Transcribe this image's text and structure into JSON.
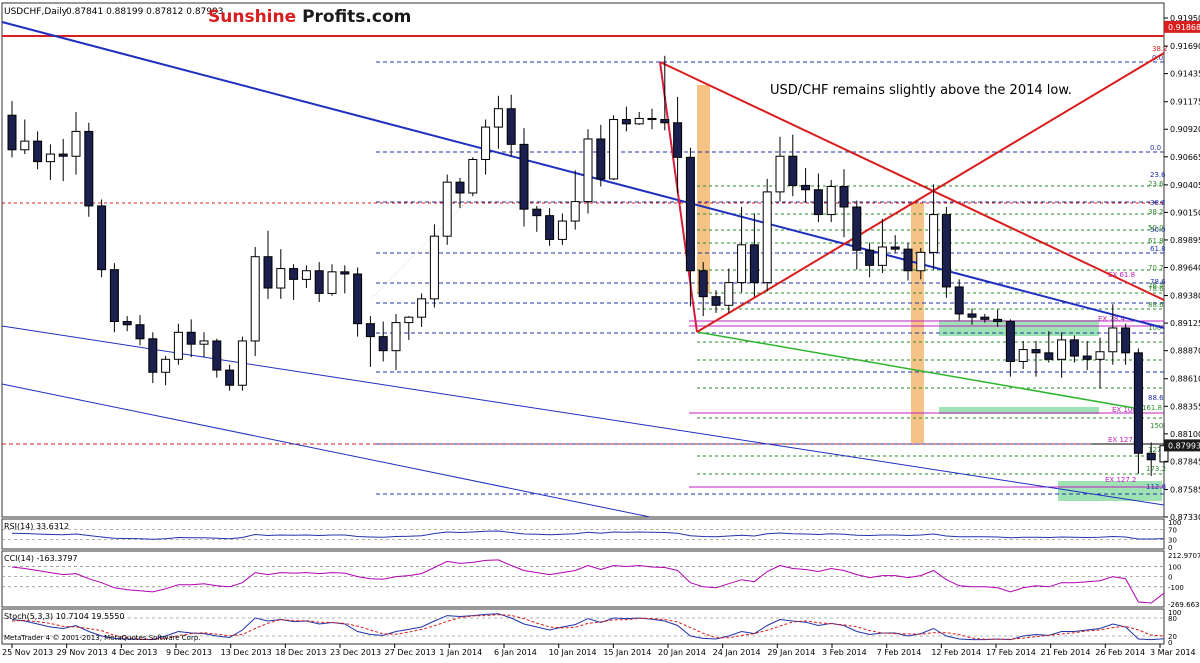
{
  "header": {
    "symbol_label": "USDCHF,Daily",
    "ohlc": "0.87841 0.88199 0.87812 0.87993"
  },
  "brand": {
    "part1": "Sunshine",
    "part2": "Profits.com",
    "color1": "#d81e1e",
    "color2": "#1a1a1a"
  },
  "annotation": "USD/CHF remains slightly above the 2014 low.",
  "footer": "MetaTrader 4 © 2001-2013, MetaQuotes Software Corp.",
  "colors": {
    "bear": "#1a1f4e",
    "bull": "#ffffff",
    "trend_blue": "#1f2fbf",
    "trend_red": "#d81e1e",
    "trend_green": "#2db52d",
    "fib_blue": "#2233aa",
    "fib_green": "#2d8a2d",
    "magenta": "#c020c0",
    "orange_band": "#f5b971",
    "green_zone": "#7fd89a",
    "osc": "#b300b3"
  },
  "chart_data": [
    {
      "type": "candlestick",
      "title": "USDCHF,Daily",
      "y_ticks": [
        "0.91950",
        "0.91690",
        "0.91435",
        "0.91175",
        "0.90920",
        "0.90665",
        "0.90405",
        "0.90150",
        "0.89895",
        "0.89640",
        "0.89380",
        "0.89125",
        "0.88870",
        "0.88610",
        "0.88355",
        "0.88100",
        "0.87845",
        "0.87585",
        "0.87330"
      ],
      "ylim": [
        0.8733,
        0.9195
      ],
      "x_ticks": [
        "25 Nov 2013",
        "29 Nov 2013",
        "4 Dec 2013",
        "9 Dec 2013",
        "13 Dec 2013",
        "18 Dec 2013",
        "23 Dec 2013",
        "27 Dec 2013",
        "1 Jan 2014",
        "6 Jan 2014",
        "10 Jan 2014",
        "15 Jan 2014",
        "20 Jan 2014",
        "24 Jan 2014",
        "29 Jan 2014",
        "3 Feb 2014",
        "7 Feb 2014",
        "12 Feb 2014",
        "17 Feb 2014",
        "21 Feb 2014",
        "26 Feb 2014",
        "3 Mar 2014"
      ],
      "price_labels": [
        {
          "text": "0.91868",
          "value": 0.91868,
          "kind": "red"
        },
        {
          "text": "0.87993",
          "value": 0.87993,
          "kind": "dark"
        }
      ],
      "candles": [
        [
          0.9105,
          0.9118,
          0.9066,
          0.9073
        ],
        [
          0.9073,
          0.9101,
          0.9069,
          0.9081
        ],
        [
          0.9081,
          0.909,
          0.9055,
          0.9062
        ],
        [
          0.9062,
          0.9078,
          0.9045,
          0.9069
        ],
        [
          0.9069,
          0.9083,
          0.9044,
          0.9067
        ],
        [
          0.9067,
          0.9108,
          0.905,
          0.909
        ],
        [
          0.909,
          0.9098,
          0.9011,
          0.9021
        ],
        [
          0.9021,
          0.9027,
          0.8955,
          0.8962
        ],
        [
          0.8962,
          0.8968,
          0.8904,
          0.8914
        ],
        [
          0.8914,
          0.8919,
          0.8905,
          0.8911
        ],
        [
          0.8911,
          0.892,
          0.8892,
          0.8898
        ],
        [
          0.8898,
          0.8904,
          0.8857,
          0.8867
        ],
        [
          0.8867,
          0.8882,
          0.8855,
          0.8879
        ],
        [
          0.8879,
          0.8912,
          0.8874,
          0.8904
        ],
        [
          0.8904,
          0.8916,
          0.8881,
          0.8893
        ],
        [
          0.8893,
          0.8904,
          0.8881,
          0.8896
        ],
        [
          0.8896,
          0.8898,
          0.8862,
          0.8869
        ],
        [
          0.8869,
          0.8874,
          0.885,
          0.8855
        ],
        [
          0.8855,
          0.89,
          0.885,
          0.8896
        ],
        [
          0.8896,
          0.8983,
          0.8882,
          0.8974
        ],
        [
          0.8974,
          0.8998,
          0.8935,
          0.8945
        ],
        [
          0.8945,
          0.8981,
          0.8935,
          0.8963
        ],
        [
          0.8963,
          0.8967,
          0.8934,
          0.8953
        ],
        [
          0.8953,
          0.8966,
          0.8945,
          0.8961
        ],
        [
          0.8961,
          0.8969,
          0.8932,
          0.894
        ],
        [
          0.894,
          0.8967,
          0.8938,
          0.896
        ],
        [
          0.896,
          0.8966,
          0.894,
          0.8958
        ],
        [
          0.8958,
          0.8964,
          0.89,
          0.8912
        ],
        [
          0.8912,
          0.8919,
          0.8872,
          0.89
        ],
        [
          0.89,
          0.8914,
          0.8877,
          0.8887
        ],
        [
          0.8887,
          0.8921,
          0.8869,
          0.8913
        ],
        [
          0.8913,
          0.8919,
          0.8897,
          0.8918
        ],
        [
          0.8918,
          0.894,
          0.8909,
          0.8935
        ],
        [
          0.8935,
          0.9004,
          0.8927,
          0.8993
        ],
        [
          0.8993,
          0.905,
          0.8985,
          0.9043
        ],
        [
          0.9043,
          0.9047,
          0.9019,
          0.9033
        ],
        [
          0.9033,
          0.9066,
          0.903,
          0.9064
        ],
        [
          0.9064,
          0.9101,
          0.905,
          0.9094
        ],
        [
          0.9094,
          0.9123,
          0.9074,
          0.9111
        ],
        [
          0.9111,
          0.9124,
          0.9067,
          0.9078
        ],
        [
          0.9078,
          0.9093,
          0.9002,
          0.9018
        ],
        [
          0.9018,
          0.9021,
          0.8997,
          0.9012
        ],
        [
          0.9012,
          0.9019,
          0.8984,
          0.899
        ],
        [
          0.899,
          0.9014,
          0.8985,
          0.9007
        ],
        [
          0.9007,
          0.9054,
          0.8999,
          0.9025
        ],
        [
          0.9025,
          0.9092,
          0.9014,
          0.9083
        ],
        [
          0.9083,
          0.9096,
          0.9039,
          0.9046
        ],
        [
          0.9046,
          0.9105,
          0.9045,
          0.9101
        ],
        [
          0.9101,
          0.9113,
          0.909,
          0.9097
        ],
        [
          0.9097,
          0.9108,
          0.9096,
          0.9102
        ],
        [
          0.9102,
          0.9111,
          0.9092,
          0.9101
        ],
        [
          0.9101,
          0.916,
          0.9091,
          0.9098
        ],
        [
          0.9098,
          0.9122,
          0.9033,
          0.9066
        ],
        [
          0.9066,
          0.9075,
          0.8928,
          0.8961
        ],
        [
          0.8961,
          0.8969,
          0.8919,
          0.8937
        ],
        [
          0.8937,
          0.8943,
          0.8922,
          0.8929
        ],
        [
          0.8929,
          0.8963,
          0.8922,
          0.895
        ],
        [
          0.895,
          0.902,
          0.8941,
          0.8985
        ],
        [
          0.8985,
          0.9014,
          0.8937,
          0.895
        ],
        [
          0.895,
          0.9046,
          0.8942,
          0.9034
        ],
        [
          0.9034,
          0.9085,
          0.9025,
          0.9067
        ],
        [
          0.9067,
          0.9087,
          0.903,
          0.904
        ],
        [
          0.904,
          0.9056,
          0.9024,
          0.9036
        ],
        [
          0.9036,
          0.9051,
          0.9006,
          0.9013
        ],
        [
          0.9013,
          0.9045,
          0.9006,
          0.9039
        ],
        [
          0.9039,
          0.9055,
          0.8992,
          0.902
        ],
        [
          0.902,
          0.9026,
          0.8962,
          0.898
        ],
        [
          0.898,
          0.8987,
          0.8955,
          0.8966
        ],
        [
          0.8966,
          0.9009,
          0.8959,
          0.8983
        ],
        [
          0.8983,
          0.8994,
          0.8978,
          0.8981
        ],
        [
          0.8981,
          0.8987,
          0.8952,
          0.8961
        ],
        [
          0.8961,
          0.8982,
          0.8953,
          0.8978
        ],
        [
          0.8978,
          0.9041,
          0.8962,
          0.9013
        ],
        [
          0.9013,
          0.902,
          0.8936,
          0.8946
        ],
        [
          0.8946,
          0.8953,
          0.8915,
          0.8921
        ],
        [
          0.8921,
          0.8926,
          0.8911,
          0.8918
        ],
        [
          0.8918,
          0.8921,
          0.8913,
          0.8916
        ],
        [
          0.8916,
          0.8925,
          0.8909,
          0.8914
        ],
        [
          0.8914,
          0.8916,
          0.8863,
          0.8877
        ],
        [
          0.8877,
          0.8896,
          0.887,
          0.8888
        ],
        [
          0.8888,
          0.8896,
          0.8863,
          0.8885
        ],
        [
          0.8885,
          0.8905,
          0.8876,
          0.8879
        ],
        [
          0.8879,
          0.8904,
          0.8862,
          0.8897
        ],
        [
          0.8897,
          0.8901,
          0.8876,
          0.8882
        ],
        [
          0.8882,
          0.8896,
          0.8869,
          0.8879
        ],
        [
          0.8879,
          0.8899,
          0.8852,
          0.8886
        ],
        [
          0.8886,
          0.893,
          0.8874,
          0.8908
        ],
        [
          0.8908,
          0.8912,
          0.8874,
          0.8885
        ],
        [
          0.8885,
          0.8889,
          0.8773,
          0.8792
        ],
        [
          0.8792,
          0.8802,
          0.8771,
          0.8786
        ],
        [
          0.8784,
          0.882,
          0.8781,
          0.8799
        ]
      ]
    },
    {
      "type": "line",
      "title": "RSI(14) 33.6312",
      "ylim": [
        0,
        100
      ],
      "y_ticks": [
        "100",
        "70",
        "30",
        "0"
      ],
      "series": [
        {
          "values": [
            55,
            54,
            52,
            50,
            49,
            52,
            46,
            40,
            35,
            34,
            33,
            31,
            33,
            38,
            37,
            37,
            35,
            33,
            38,
            50,
            46,
            48,
            47,
            48,
            46,
            48,
            48,
            42,
            40,
            39,
            42,
            43,
            45,
            54,
            60,
            58,
            60,
            63,
            64,
            58,
            52,
            51,
            49,
            51,
            53,
            59,
            55,
            60,
            59,
            60,
            59,
            58,
            55,
            45,
            42,
            41,
            44,
            47,
            44,
            53,
            56,
            53,
            52,
            50,
            53,
            51,
            47,
            46,
            48,
            48,
            46,
            48,
            52,
            44,
            41,
            41,
            41,
            40,
            37,
            39,
            39,
            38,
            40,
            39,
            38,
            39,
            42,
            40,
            32,
            32,
            33.6
          ]
        }
      ]
    },
    {
      "type": "line",
      "title": "CCI(14) -163.3797",
      "ylim": [
        -269.6632,
        212.9707
      ],
      "y_ticks": [
        "212.9707",
        "100",
        "0",
        "-100",
        "-269.6632"
      ],
      "series": [
        {
          "values": [
            95,
            80,
            60,
            40,
            20,
            30,
            -20,
            -60,
            -110,
            -130,
            -140,
            -150,
            -120,
            -80,
            -80,
            -70,
            -90,
            -100,
            -60,
            40,
            20,
            40,
            35,
            40,
            30,
            40,
            35,
            0,
            -20,
            -25,
            0,
            10,
            30,
            90,
            150,
            130,
            140,
            160,
            165,
            110,
            60,
            40,
            20,
            40,
            60,
            110,
            70,
            110,
            100,
            110,
            95,
            90,
            60,
            -60,
            -100,
            -110,
            -70,
            -30,
            -50,
            50,
            110,
            80,
            70,
            50,
            80,
            60,
            20,
            -10,
            10,
            10,
            -10,
            10,
            60,
            -30,
            -90,
            -100,
            -100,
            -110,
            -150,
            -110,
            -90,
            -100,
            -60,
            -60,
            -50,
            -40,
            0,
            -20,
            -250,
            -260,
            -163.4
          ]
        }
      ]
    },
    {
      "type": "line",
      "title": "Stoch(5,3,3) 10.7104 19.5550",
      "ylim": [
        0,
        100
      ],
      "y_ticks": [
        "100",
        "80",
        "20",
        "0"
      ],
      "series": [
        {
          "values": [
            75,
            70,
            60,
            50,
            45,
            55,
            35,
            20,
            12,
            10,
            9,
            8,
            20,
            35,
            30,
            28,
            20,
            15,
            40,
            80,
            70,
            75,
            68,
            70,
            60,
            65,
            60,
            35,
            25,
            22,
            35,
            42,
            50,
            70,
            88,
            85,
            88,
            92,
            94,
            80,
            60,
            50,
            40,
            50,
            58,
            78,
            65,
            80,
            78,
            80,
            76,
            70,
            55,
            20,
            12,
            10,
            20,
            35,
            28,
            55,
            75,
            70,
            66,
            55,
            62,
            55,
            35,
            25,
            30,
            30,
            20,
            28,
            45,
            20,
            10,
            8,
            8,
            10,
            8,
            20,
            25,
            22,
            35,
            35,
            40,
            45,
            60,
            50,
            10,
            8,
            10.7
          ]
        },
        {
          "values": [
            70,
            72,
            68,
            62,
            52,
            50,
            45,
            38,
            22,
            14,
            10,
            9,
            12,
            21,
            28,
            31,
            26,
            21,
            25,
            45,
            63,
            75,
            71,
            71,
            66,
            65,
            62,
            53,
            40,
            27,
            26,
            33,
            42,
            54,
            69,
            81,
            87,
            88,
            91,
            89,
            78,
            63,
            50,
            47,
            49,
            62,
            67,
            74,
            74,
            79,
            78,
            75,
            67,
            48,
            29,
            14,
            14,
            22,
            28,
            39,
            53,
            67,
            70,
            64,
            61,
            57,
            51,
            38,
            30,
            28,
            27,
            26,
            31,
            31,
            25,
            13,
            9,
            9,
            9,
            13,
            18,
            22,
            27,
            31,
            37,
            40,
            48,
            52,
            40,
            23,
            19.6
          ]
        }
      ]
    }
  ],
  "fib_annotations": {
    "upper_blue_fib": [
      "38.2",
      "0.0"
    ],
    "mid_blue_fib": [
      "0.0",
      "23.6",
      "38.2",
      "50.0",
      "61.8",
      "78.6"
    ],
    "green_fib": [
      "23.6",
      "38.2",
      "50.0",
      "61.8",
      "70.7",
      "76.4",
      "78.6",
      "88.6",
      "100"
    ],
    "lower_blue_fib": [
      "88.6",
      "161.8"
    ],
    "ext_labels": [
      "EX 61.8",
      "EX 78.4",
      "EX 100",
      "EX 127.2",
      "150",
      "173.2",
      "127.2",
      "EX 127.2",
      "112.8"
    ]
  }
}
